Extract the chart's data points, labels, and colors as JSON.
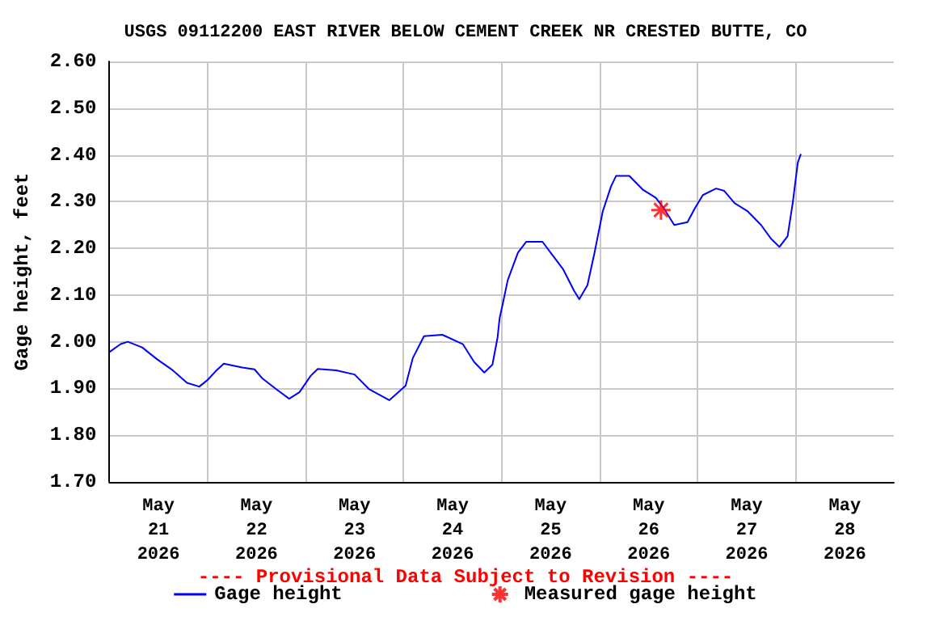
{
  "chart_data": {
    "type": "line",
    "title": "USGS 09112200 EAST RIVER BELOW CEMENT CREEK NR CRESTED BUTTE, CO",
    "ylabel": "Gage height, feet",
    "annotations": [
      "---- Provisional Data Subject to Revision ----"
    ],
    "xlim": [
      "2026-05-21T00:00",
      "2026-05-29T00:00"
    ],
    "xticks": [
      {
        "value": "2026-05-21T12:00",
        "label": "May\n21\n2026"
      },
      {
        "value": "2026-05-22T12:00",
        "label": "May\n22\n2026"
      },
      {
        "value": "2026-05-23T12:00",
        "label": "May\n23\n2026"
      },
      {
        "value": "2026-05-24T12:00",
        "label": "May\n24\n2026"
      },
      {
        "value": "2026-05-25T12:00",
        "label": "May\n25\n2026"
      },
      {
        "value": "2026-05-26T12:00",
        "label": "May\n26\n2026"
      },
      {
        "value": "2026-05-27T12:00",
        "label": "May\n27\n2026"
      },
      {
        "value": "2026-05-28T12:00",
        "label": "May\n28\n2026"
      },
      {
        "value": "2026-05-22T00:00",
        "label": null
      },
      {
        "value": "2026-05-23T00:00",
        "label": null
      },
      {
        "value": "2026-05-24T00:00",
        "label": null
      },
      {
        "value": "2026-05-25T00:00",
        "label": null
      },
      {
        "value": "2026-05-26T00:00",
        "label": null
      },
      {
        "value": "2026-05-27T00:00",
        "label": null
      },
      {
        "value": "2026-05-28T00:00",
        "label": null
      }
    ],
    "ylim": [
      1.7,
      2.6
    ],
    "yticks": [
      {
        "value": 1.7,
        "label": "1.70"
      },
      {
        "value": 1.8,
        "label": "1.80"
      },
      {
        "value": 1.9,
        "label": "1.90"
      },
      {
        "value": 2.0,
        "label": "2.00"
      },
      {
        "value": 2.1,
        "label": "2.10"
      },
      {
        "value": 2.2,
        "label": "2.20"
      },
      {
        "value": 2.3,
        "label": "2.30"
      },
      {
        "value": 2.4,
        "label": "2.40"
      },
      {
        "value": 2.5,
        "label": "2.50"
      },
      {
        "value": 2.6,
        "label": "2.60"
      }
    ],
    "grid": true,
    "legend": "bottom",
    "series": [
      {
        "name": "Gage height",
        "color": "#0000ff",
        "x": [
          "2026-05-21T00:00",
          "2026-05-21T02:45",
          "2026-05-21T04:30",
          "2026-05-21T08:00",
          "2026-05-21T11:45",
          "2026-05-21T15:30",
          "2026-05-21T19:00",
          "2026-05-21T22:00",
          "2026-05-22T00:00",
          "2026-05-22T02:00",
          "2026-05-22T04:00",
          "2026-05-22T08:30",
          "2026-05-22T11:30",
          "2026-05-22T13:30",
          "2026-05-22T16:45",
          "2026-05-22T20:00",
          "2026-05-22T22:30",
          "2026-05-23T01:15",
          "2026-05-23T03:00",
          "2026-05-23T07:30",
          "2026-05-23T12:00",
          "2026-05-23T15:30",
          "2026-05-23T20:30",
          "2026-05-24T00:30",
          "2026-05-24T02:15",
          "2026-05-24T05:00",
          "2026-05-24T09:30",
          "2026-05-24T14:30",
          "2026-05-24T17:15",
          "2026-05-24T19:45",
          "2026-05-24T21:45",
          "2026-05-24T23:00",
          "2026-05-24T23:30",
          "2026-05-25T00:15",
          "2026-05-25T01:30",
          "2026-05-25T04:00",
          "2026-05-25T06:00",
          "2026-05-25T10:00",
          "2026-05-25T12:30",
          "2026-05-25T15:00",
          "2026-05-25T17:45",
          "2026-05-25T19:00",
          "2026-05-25T21:00",
          "2026-05-25T22:45",
          "2026-05-26T00:45",
          "2026-05-26T02:45",
          "2026-05-26T04:00",
          "2026-05-26T07:15",
          "2026-05-26T10:30",
          "2026-05-26T13:45",
          "2026-05-26T15:45",
          "2026-05-26T18:15",
          "2026-05-26T21:30",
          "2026-05-26T23:15",
          "2026-05-27T01:15",
          "2026-05-27T04:30",
          "2026-05-27T06:30",
          "2026-05-27T09:00",
          "2026-05-27T12:15",
          "2026-05-27T15:30",
          "2026-05-27T18:00",
          "2026-05-27T20:00",
          "2026-05-27T22:00",
          "2026-05-27T23:15",
          "2026-05-28T00:30",
          "2026-05-28T01:15"
        ],
        "values": [
          1.978,
          1.995,
          2.0,
          1.988,
          1.962,
          1.939,
          1.912,
          1.904,
          1.918,
          1.937,
          1.953,
          1.945,
          1.941,
          1.921,
          1.899,
          1.878,
          1.892,
          1.927,
          1.942,
          1.939,
          1.93,
          1.899,
          1.875,
          1.906,
          1.965,
          2.012,
          2.015,
          1.995,
          1.957,
          1.934,
          1.951,
          2.009,
          2.05,
          2.08,
          2.132,
          2.191,
          2.214,
          2.214,
          2.185,
          2.156,
          2.109,
          2.091,
          2.121,
          2.191,
          2.279,
          2.332,
          2.355,
          2.355,
          2.326,
          2.308,
          2.285,
          2.25,
          2.256,
          2.285,
          2.314,
          2.328,
          2.323,
          2.297,
          2.279,
          2.25,
          2.22,
          2.203,
          2.226,
          2.297,
          2.384,
          2.402
        ]
      },
      {
        "name": "Measured gage height",
        "type": "scatter",
        "color": "#ff0000",
        "marker": "cross",
        "x": [
          "2026-05-26T15:00"
        ],
        "values": [
          2.282
        ]
      }
    ]
  }
}
